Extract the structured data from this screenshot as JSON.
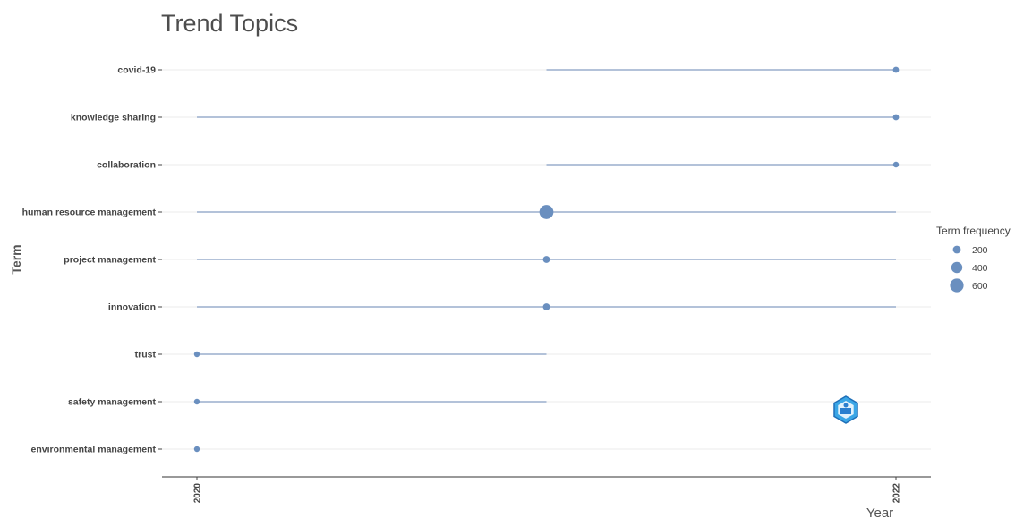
{
  "chart_data": {
    "type": "scatter",
    "title": "Trend Topics",
    "xlabel": "Year",
    "ylabel": "Term",
    "xlim": [
      2020,
      2022
    ],
    "x_ticks": [
      "2020",
      "2022"
    ],
    "legend": {
      "title": "Term frequency",
      "placement": "right",
      "entries": [
        {
          "label": "200",
          "value": 200
        },
        {
          "label": "400",
          "value": 400
        },
        {
          "label": "600",
          "value": 600
        }
      ]
    },
    "colors": {
      "point": "#6a8fbf",
      "segment": "#b3c2d9",
      "grid": "#ebebeb",
      "axis": "#333333"
    },
    "terms": [
      {
        "term": "covid-19",
        "q1": 2021,
        "median": 2022,
        "q3": 2022,
        "freq": 120
      },
      {
        "term": "knowledge sharing",
        "q1": 2020,
        "median": 2022,
        "q3": 2022,
        "freq": 120
      },
      {
        "term": "collaboration",
        "q1": 2021,
        "median": 2022,
        "q3": 2022,
        "freq": 100
      },
      {
        "term": "human resource management",
        "q1": 2020,
        "median": 2021,
        "q3": 2022,
        "freq": 640
      },
      {
        "term": "project management",
        "q1": 2020,
        "median": 2021,
        "q3": 2022,
        "freq": 160
      },
      {
        "term": "innovation",
        "q1": 2020,
        "median": 2021,
        "q3": 2022,
        "freq": 160
      },
      {
        "term": "trust",
        "q1": 2020,
        "median": 2020,
        "q3": 2021,
        "freq": 100
      },
      {
        "term": "safety management",
        "q1": 2020,
        "median": 2020,
        "q3": 2021,
        "freq": 100
      },
      {
        "term": "environmental management",
        "q1": 2020,
        "median": 2020,
        "q3": 2020,
        "freq": 90
      }
    ]
  }
}
